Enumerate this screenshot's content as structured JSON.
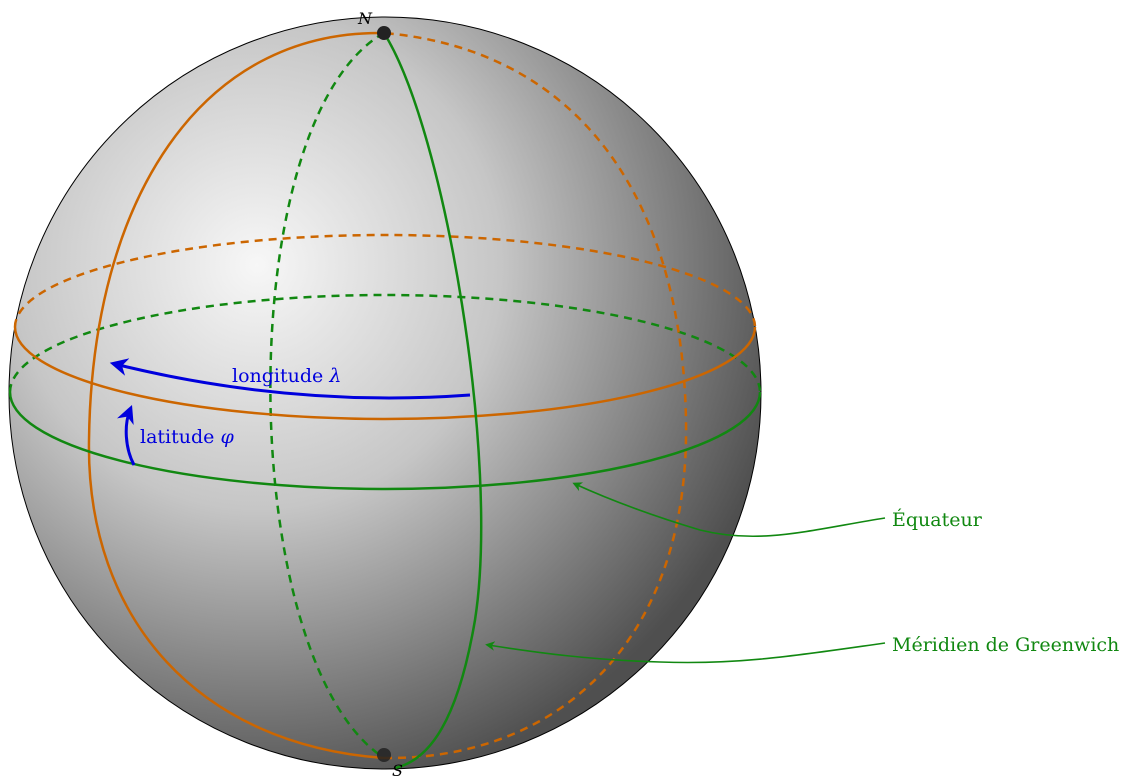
{
  "poles": {
    "north": "N",
    "south": "S"
  },
  "arrows": {
    "longitude": {
      "text": "longitude ",
      "symbol": "λ"
    },
    "latitude": {
      "text": "latitude ",
      "symbol": "φ"
    }
  },
  "callouts": {
    "equator": "Équateur",
    "meridian": "Méridien de Greenwich"
  },
  "colors": {
    "sphere_edge": "#000000",
    "sphere_light": "#f5f5f5",
    "sphere_dark": "#4a4a4a",
    "orange": "#cc6600",
    "green": "#118811",
    "blue": "#0000dd",
    "pole": "#222222"
  }
}
